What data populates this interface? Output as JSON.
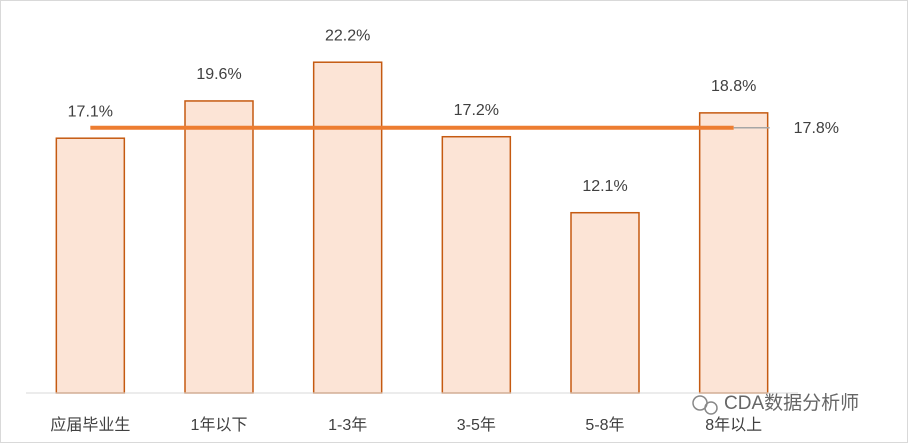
{
  "chart_data": {
    "type": "bar",
    "categories": [
      "应届毕业生",
      "1年以下",
      "1-3年",
      "3-5年",
      "5-8年",
      "8年以上"
    ],
    "values": [
      17.1,
      19.6,
      22.2,
      17.2,
      12.1,
      18.8
    ],
    "value_labels": [
      "17.1%",
      "19.6%",
      "22.2%",
      "17.2%",
      "12.1%",
      "18.8%"
    ],
    "color": "#fce4d6",
    "edge_color": "#c55a11",
    "ylim": [
      0,
      25
    ],
    "reference_line": {
      "value": 17.8,
      "label": "17.8%",
      "color": "#ed7d31"
    },
    "watermark": "CDA数据分析师"
  }
}
